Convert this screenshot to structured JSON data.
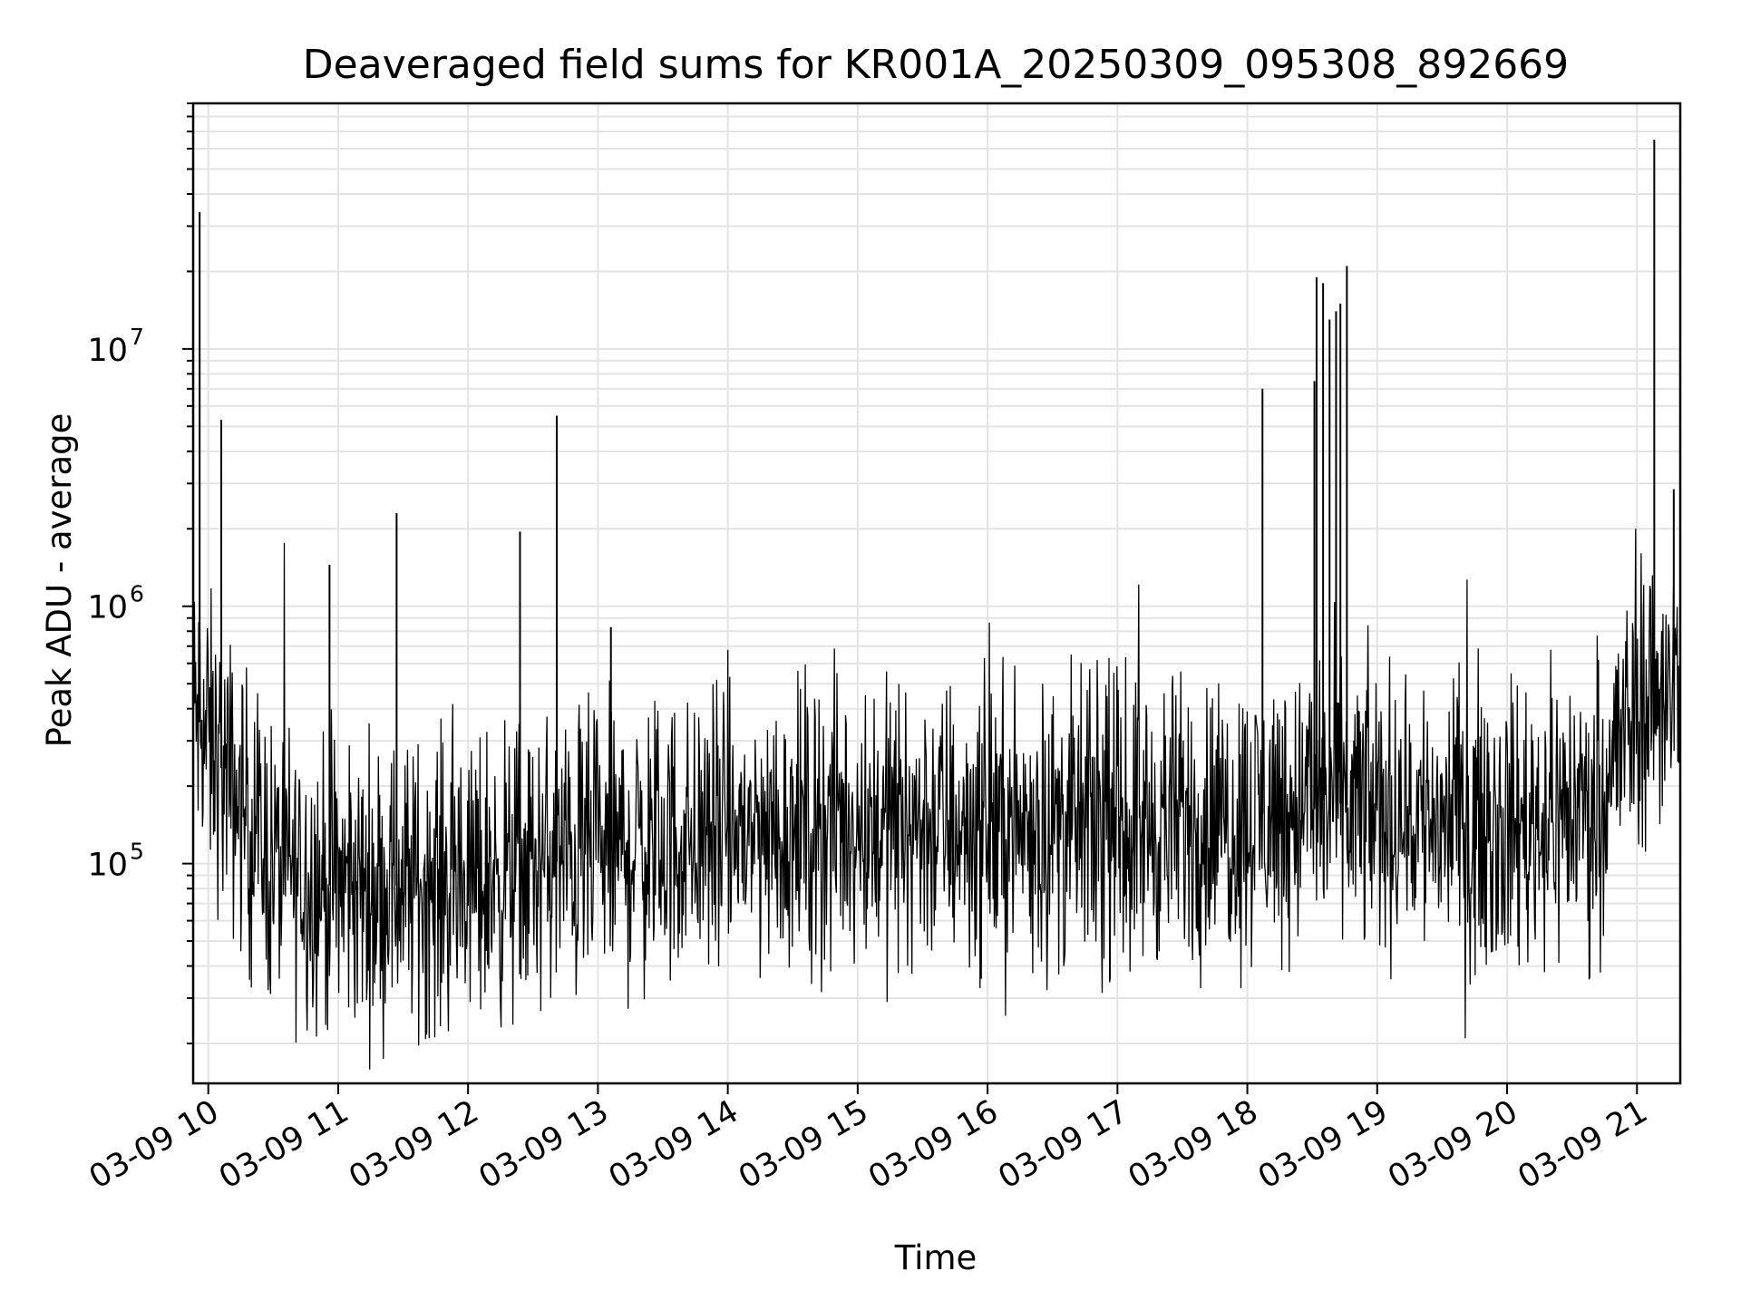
{
  "chart_data": {
    "type": "line",
    "title": "Deaveraged field sums for KR001A_20250309_095308_892669",
    "xlabel": "Time",
    "ylabel": "Peak ADU - average",
    "x_range": [
      "03-09 09:53",
      "03-09 21:20"
    ],
    "y_scale": "log",
    "ylim": [
      14000,
      90000000
    ],
    "grid": true,
    "line_color": "#000000",
    "x_ticks": [
      "03-09 10",
      "03-09 11",
      "03-09 12",
      "03-09 13",
      "03-09 14",
      "03-09 15",
      "03-09 16",
      "03-09 17",
      "03-09 18",
      "03-09 19",
      "03-09 20",
      "03-09 21"
    ],
    "y_ticks": [
      {
        "base": "10",
        "exponent": "5",
        "value": 100000
      },
      {
        "base": "10",
        "exponent": "6",
        "value": 1000000
      },
      {
        "base": "10",
        "exponent": "7",
        "value": 10000000
      }
    ],
    "baseline": [
      {
        "x": "03-09 09:53",
        "y": 400000
      },
      {
        "x": "03-09 10:10",
        "y": 200000
      },
      {
        "x": "03-09 10:30",
        "y": 100000
      },
      {
        "x": "03-09 11:00",
        "y": 80000
      },
      {
        "x": "03-09 12:00",
        "y": 85000
      },
      {
        "x": "03-09 13:00",
        "y": 110000
      },
      {
        "x": "03-09 14:00",
        "y": 130000
      },
      {
        "x": "03-09 15:00",
        "y": 145000
      },
      {
        "x": "03-09 16:00",
        "y": 140000
      },
      {
        "x": "03-09 17:00",
        "y": 140000
      },
      {
        "x": "03-09 18:00",
        "y": 150000
      },
      {
        "x": "03-09 18:30",
        "y": 180000
      },
      {
        "x": "03-09 19:00",
        "y": 160000
      },
      {
        "x": "03-09 20:00",
        "y": 140000
      },
      {
        "x": "03-09 20:40",
        "y": 170000
      },
      {
        "x": "03-09 21:00",
        "y": 400000
      },
      {
        "x": "03-09 21:20",
        "y": 550000
      }
    ],
    "spikes": [
      {
        "x": "03-09 09:56",
        "y": 34000000
      },
      {
        "x": "03-09 10:06",
        "y": 5300000
      },
      {
        "x": "03-09 10:56",
        "y": 1450000
      },
      {
        "x": "03-09 11:27",
        "y": 2300000
      },
      {
        "x": "03-09 12:24",
        "y": 1950000
      },
      {
        "x": "03-09 12:41",
        "y": 5500000
      },
      {
        "x": "03-09 13:06",
        "y": 830000
      },
      {
        "x": "03-09 18:07",
        "y": 7000000
      },
      {
        "x": "03-09 18:31",
        "y": 7500000
      },
      {
        "x": "03-09 18:32",
        "y": 19000000
      },
      {
        "x": "03-09 18:35",
        "y": 18000000
      },
      {
        "x": "03-09 18:38",
        "y": 13000000
      },
      {
        "x": "03-09 18:41",
        "y": 14000000
      },
      {
        "x": "03-09 18:43",
        "y": 15000000
      },
      {
        "x": "03-09 18:46",
        "y": 21000000
      },
      {
        "x": "03-09 21:08",
        "y": 65000000
      },
      {
        "x": "03-09 21:17",
        "y": 2850000
      }
    ]
  }
}
